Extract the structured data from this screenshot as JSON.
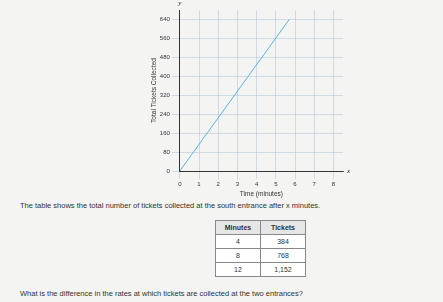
{
  "chart_data": {
    "type": "line",
    "x": [
      0,
      5.7
    ],
    "values": [
      0,
      640
    ],
    "color": "#5ab4e0",
    "x_label": "Time (minutes)",
    "y_label": "Total Tickets Collected",
    "xlim": [
      0,
      8.5
    ],
    "xticks": [
      0,
      1,
      2,
      3,
      4,
      5,
      6,
      7,
      8
    ],
    "ylim": [
      0,
      680
    ],
    "yticks": [
      0,
      80,
      160,
      240,
      320,
      400,
      480,
      560,
      640
    ],
    "grid": true,
    "annotations": [
      {
        "text": "y",
        "axis": "y"
      },
      {
        "text": "x",
        "axis": "x"
      }
    ]
  },
  "intro": "The table shows the total number of tickets collected at the south entrance after x minutes.",
  "table": {
    "header": [
      "Minutes",
      "Tickets"
    ],
    "rows": [
      [
        "4",
        "384"
      ],
      [
        "8",
        "768"
      ],
      [
        "12",
        "1,152"
      ]
    ]
  },
  "question": "What is the difference in the rates at which tickets are collected at the two entrances?"
}
